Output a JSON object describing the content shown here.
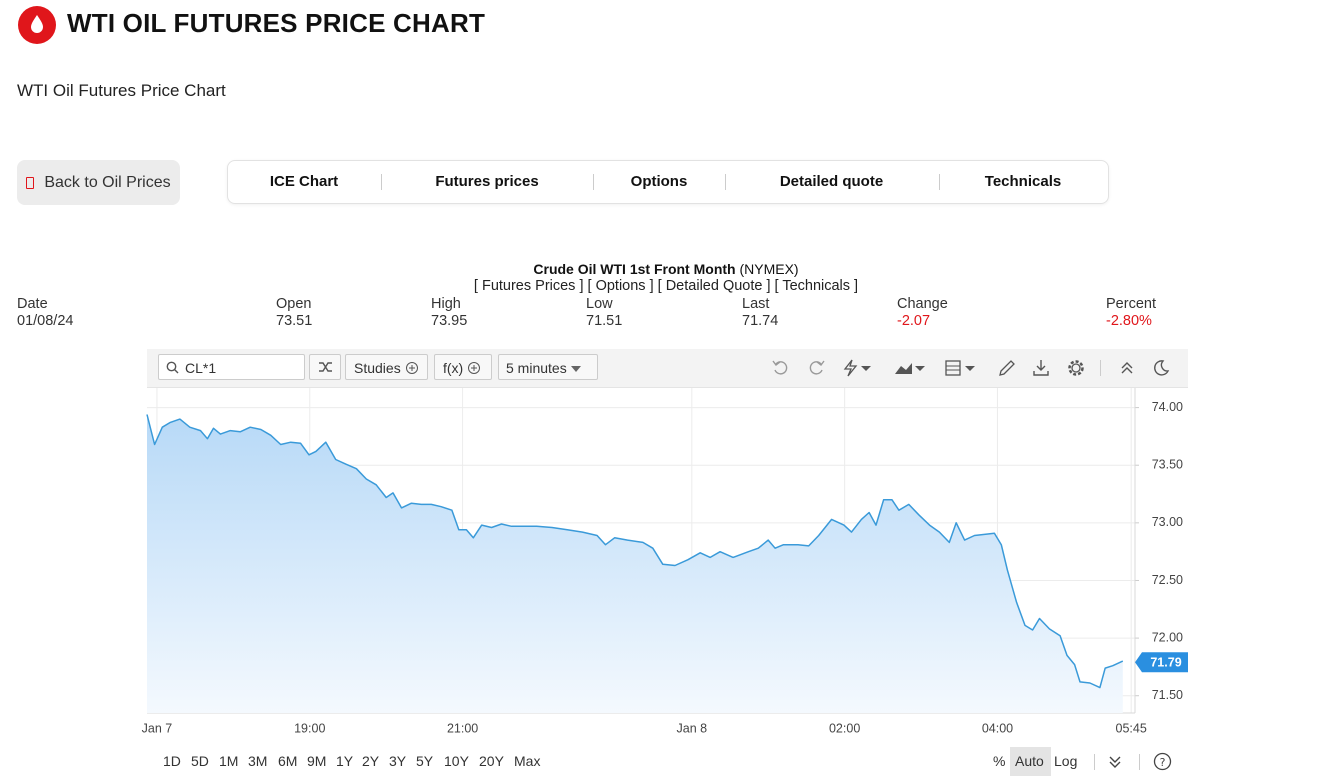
{
  "header": {
    "title": "WTI OIL FUTURES PRICE CHART",
    "subtitle": "WTI Oil Futures Price Chart"
  },
  "nav": {
    "back_button": "Back to Oil Prices",
    "tabs": [
      "ICE Chart",
      "Futures prices",
      "Options",
      "Detailed quote",
      "Technicals"
    ]
  },
  "quote": {
    "name": "Crude Oil WTI 1st Front Month",
    "exchange": "(NYMEX)",
    "links": [
      "[ Futures Prices ]",
      "[ Options ]",
      "[ Detailed Quote ]",
      "[ Technicals ]"
    ],
    "columns": [
      {
        "label": "Date",
        "value": "01/08/24"
      },
      {
        "label": "Open",
        "value": "73.51"
      },
      {
        "label": "High",
        "value": "73.95"
      },
      {
        "label": "Low",
        "value": "71.51"
      },
      {
        "label": "Last",
        "value": "71.74"
      },
      {
        "label": "Change",
        "value": "-2.07"
      },
      {
        "label": "Percent",
        "value": "-2.80%"
      }
    ]
  },
  "toolbar": {
    "symbol": "CL*1",
    "studies": "Studies",
    "fx": "f(x)",
    "interval": "5 minutes"
  },
  "chart_data": {
    "type": "area",
    "color": "#3a9ad9",
    "x": [
      -0.13,
      -0.03,
      0.07,
      0.17,
      0.3,
      0.43,
      0.57,
      0.66,
      0.74,
      0.83,
      0.96,
      1.09,
      1.22,
      1.36,
      1.49,
      1.62,
      1.75,
      1.88,
      1.99,
      2.08,
      2.21,
      2.34,
      2.47,
      2.61,
      2.74,
      2.87,
      3.0,
      3.09,
      3.2,
      3.33,
      3.46,
      3.59,
      3.72,
      3.86,
      3.95,
      4.05,
      4.14,
      4.25,
      4.38,
      4.51,
      4.64,
      4.78,
      4.97,
      5.17,
      5.37,
      5.57,
      5.76,
      5.87,
      5.99,
      6.16,
      6.36,
      6.49,
      6.62,
      6.78,
      6.95,
      7.11,
      7.24,
      7.37,
      7.54,
      7.74,
      7.87,
      8.0,
      8.09,
      8.2,
      8.39,
      8.53,
      8.66,
      8.83,
      8.99,
      9.09,
      9.22,
      9.32,
      9.41,
      9.51,
      9.62,
      9.71,
      9.84,
      9.97,
      10.11,
      10.24,
      10.37,
      10.46,
      10.57,
      10.7,
      10.83,
      10.96,
      11.05,
      11.13,
      11.25,
      11.36,
      11.46,
      11.55,
      11.68,
      11.82,
      11.91,
      12.01,
      12.08,
      12.21,
      12.34,
      12.41,
      12.51,
      12.64
    ],
    "values": [
      73.94,
      73.68,
      73.83,
      73.87,
      73.9,
      73.83,
      73.8,
      73.73,
      73.82,
      73.77,
      73.8,
      73.79,
      73.83,
      73.81,
      73.76,
      73.68,
      73.7,
      73.69,
      73.59,
      73.62,
      73.7,
      73.55,
      73.51,
      73.47,
      73.38,
      73.33,
      73.22,
      73.26,
      73.13,
      73.17,
      73.16,
      73.16,
      73.14,
      73.11,
      72.94,
      72.94,
      72.87,
      72.98,
      72.96,
      72.99,
      72.97,
      72.97,
      72.97,
      72.96,
      72.94,
      72.92,
      72.89,
      72.81,
      72.87,
      72.85,
      72.83,
      72.78,
      72.64,
      72.63,
      72.68,
      72.74,
      72.7,
      72.75,
      72.7,
      72.75,
      72.78,
      72.85,
      72.78,
      72.81,
      72.81,
      72.8,
      72.89,
      73.03,
      72.98,
      72.92,
      73.03,
      73.09,
      72.98,
      73.2,
      73.2,
      73.11,
      73.16,
      73.07,
      72.98,
      72.92,
      72.83,
      73.0,
      72.85,
      72.89,
      72.9,
      72.91,
      72.81,
      72.59,
      72.31,
      72.11,
      72.07,
      72.17,
      72.08,
      72.02,
      71.85,
      71.77,
      71.62,
      71.61,
      71.57,
      71.74,
      71.76,
      71.8
    ],
    "last_value": 71.79,
    "xlim": [
      -0.13,
      12.8
    ],
    "ylim": [
      71.35,
      74.17
    ],
    "xticks": [
      {
        "value": 0,
        "label": "Jan 7"
      },
      {
        "value": 2,
        "label": "19:00"
      },
      {
        "value": 4,
        "label": "21:00"
      },
      {
        "value": 7,
        "label": "Jan 8"
      },
      {
        "value": 9,
        "label": "02:00"
      },
      {
        "value": 11,
        "label": "04:00"
      },
      {
        "value": 12.75,
        "label": "05:45"
      }
    ],
    "yticks": [
      {
        "value": 74,
        "label": "74.00"
      },
      {
        "value": 73.5,
        "label": "73.50"
      },
      {
        "value": 73,
        "label": "73.00"
      },
      {
        "value": 72.5,
        "label": "72.50"
      },
      {
        "value": 72,
        "label": "72.00"
      },
      {
        "value": 71.5,
        "label": "71.50"
      }
    ],
    "grid": true
  },
  "range_bar": {
    "ranges": [
      "1D",
      "5D",
      "1M",
      "3M",
      "6M",
      "9M",
      "1Y",
      "2Y",
      "3Y",
      "5Y",
      "10Y",
      "20Y",
      "Max"
    ],
    "options": [
      "%",
      "Auto",
      "Log"
    ]
  }
}
